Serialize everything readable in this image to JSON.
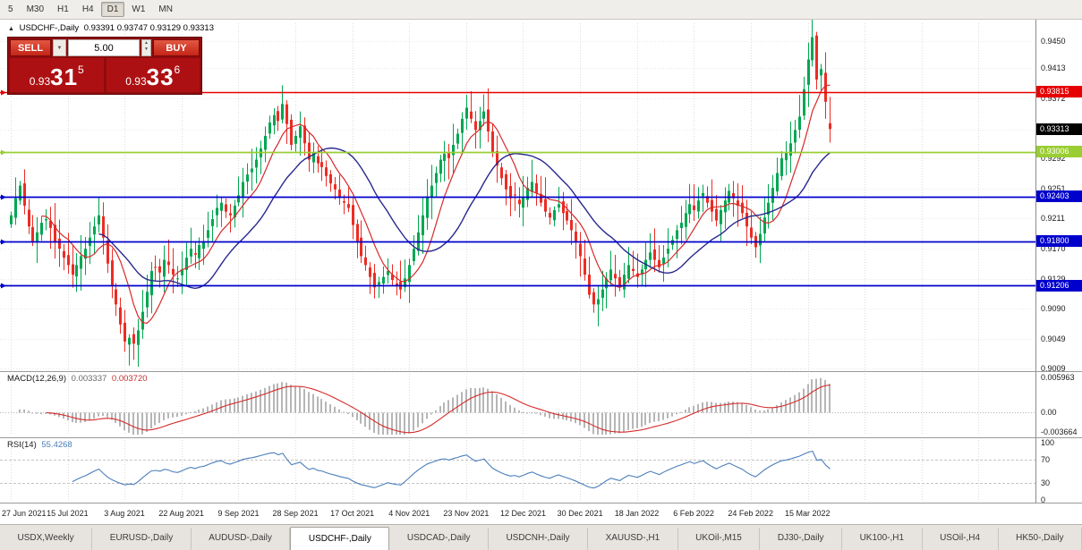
{
  "colors": {
    "background": "#ffffff",
    "up_candle": "#00a651",
    "down_candle": "#ec2c24",
    "ma_fast": "#d62a2a",
    "ma_slow": "#28288f",
    "grid": "#dcdcdc",
    "level_red": "#e60000",
    "level_green": "#9acd32",
    "level_blue": "#0000cc",
    "macd_histogram": "#b6b6b6",
    "macd_signal": "#d62a2a",
    "rsi_line": "#4a7ebb",
    "trade_panel_bg": "#8e0b0d",
    "trade_button": "#c42517",
    "trade_price_bg": "#ad1013",
    "current_price_box": "#000000"
  },
  "toolbar": {
    "timeframes": [
      "5",
      "M30",
      "H1",
      "H4",
      "D1",
      "W1",
      "MN"
    ],
    "active": "D1"
  },
  "chart": {
    "collapse_arrow": "▲",
    "title": "USDCHF-,Daily",
    "ohlc_text": "0.93391 0.93747 0.93129 0.93313"
  },
  "trade_panel": {
    "sell_label": "SELL",
    "buy_label": "BUY",
    "volume": "5.00",
    "sell_price": {
      "prefix": "0.93",
      "big": "31",
      "sup": "5"
    },
    "buy_price": {
      "prefix": "0.93",
      "big": "33",
      "sup": "6"
    }
  },
  "price_axis": {
    "range": {
      "max": 0.94738,
      "min": 0.90063
    },
    "ticks": [
      "0.9450",
      "0.9413",
      "0.9372",
      "0.9331",
      "0.9292",
      "0.9251",
      "0.9211",
      "0.9170",
      "0.9129",
      "0.9090",
      "0.9049",
      "0.9009"
    ],
    "levels": [
      {
        "value": 0.93815,
        "label": "0.93815",
        "color": "#e60000",
        "text_color": "#ffffff",
        "type": "resistance"
      },
      {
        "value": 0.93006,
        "label": "0.93006",
        "color": "#9acd32",
        "text_color": "#ffffff",
        "type": "support"
      },
      {
        "value": 0.92403,
        "label": "0.92403",
        "color": "#0000cc",
        "text_color": "#ffffff",
        "type": "support"
      },
      {
        "value": 0.918,
        "label": "0.91800",
        "color": "#0000cc",
        "text_color": "#ffffff",
        "type": "support"
      },
      {
        "value": 0.91206,
        "label": "0.91206",
        "color": "#0000cc",
        "text_color": "#ffffff",
        "type": "support"
      }
    ],
    "current_price": {
      "value": 0.93313,
      "label": "0.93313",
      "box_color": "#000000",
      "text_color": "#ffffff"
    }
  },
  "chart_data": {
    "type": "candlestick",
    "symbol": "USDCHF-",
    "timeframe": "Daily",
    "current_bar": {
      "open": 0.93391,
      "high": 0.93747,
      "low": 0.93129,
      "close": 0.93313
    },
    "ma_fast_period": 8,
    "ma_slow_period": 21,
    "label_every": 13,
    "x_labels": [
      "27 Jun 2021",
      "15 Jul 2021",
      "3 Aug 2021",
      "22 Aug 2021",
      "9 Sep 2021",
      "28 Sep 2021",
      "17 Oct 2021",
      "4 Nov 2021",
      "23 Nov 2021",
      "12 Dec 2021",
      "30 Dec 2021",
      "18 Jan 2022",
      "6 Feb 2022",
      "24 Feb 2022",
      "15 Mar 2022"
    ],
    "closes": [
      0.9215,
      0.9238,
      0.9255,
      0.9228,
      0.92,
      0.918,
      0.9192,
      0.9205,
      0.921,
      0.9198,
      0.918,
      0.917,
      0.9158,
      0.9148,
      0.9135,
      0.9148,
      0.916,
      0.917,
      0.9185,
      0.92,
      0.9215,
      0.9185,
      0.915,
      0.912,
      0.9095,
      0.9068,
      0.9045,
      0.905,
      0.9042,
      0.906,
      0.9085,
      0.9112,
      0.914,
      0.9145,
      0.9138,
      0.9155,
      0.9148,
      0.9135,
      0.913,
      0.9142,
      0.9158,
      0.917,
      0.9162,
      0.9175,
      0.918,
      0.9195,
      0.921,
      0.9225,
      0.9232,
      0.922,
      0.9215,
      0.9228,
      0.9242,
      0.926,
      0.927,
      0.9278,
      0.929,
      0.9305,
      0.9322,
      0.934,
      0.935,
      0.9342,
      0.9365,
      0.9338,
      0.931,
      0.9322,
      0.9335,
      0.9312,
      0.929,
      0.93,
      0.9285,
      0.928,
      0.9268,
      0.9258,
      0.925,
      0.924,
      0.9232,
      0.9225,
      0.9202,
      0.918,
      0.916,
      0.9148,
      0.9132,
      0.9118,
      0.9125,
      0.9132,
      0.914,
      0.9128,
      0.912,
      0.9115,
      0.913,
      0.9148,
      0.917,
      0.9192,
      0.9215,
      0.924,
      0.9255,
      0.9272,
      0.929,
      0.9298,
      0.9292,
      0.931,
      0.9325,
      0.9345,
      0.936,
      0.9345,
      0.933,
      0.9342,
      0.9355,
      0.9328,
      0.93,
      0.9282,
      0.9265,
      0.925,
      0.9238,
      0.9242,
      0.923,
      0.924,
      0.9252,
      0.926,
      0.9245,
      0.9232,
      0.922,
      0.9212,
      0.9222,
      0.923,
      0.9218,
      0.9208,
      0.9195,
      0.918,
      0.916,
      0.9135,
      0.9108,
      0.9095,
      0.9102,
      0.9115,
      0.913,
      0.9142,
      0.913,
      0.912,
      0.9135,
      0.9148,
      0.914,
      0.9132,
      0.9142,
      0.9155,
      0.9165,
      0.9155,
      0.9145,
      0.9158,
      0.917,
      0.9182,
      0.9195,
      0.9205,
      0.9218,
      0.923,
      0.9222,
      0.9235,
      0.9245,
      0.9232,
      0.922,
      0.9208,
      0.9222,
      0.9235,
      0.9248,
      0.9238,
      0.9228,
      0.9218,
      0.92,
      0.9185,
      0.9172,
      0.919,
      0.9212,
      0.9232,
      0.9252,
      0.9272,
      0.9292,
      0.93,
      0.9312,
      0.933,
      0.9348,
      0.9385,
      0.9425,
      0.9455,
      0.9398,
      0.9412,
      0.9368,
      0.93313
    ]
  },
  "macd": {
    "label": "MACD(12,26,9)",
    "fast": 12,
    "slow": 26,
    "signal": 9,
    "value_main": "0.003337",
    "value_signal": "0.003720",
    "axis_labels": [
      "0.005963",
      "0.00",
      "-0.003664"
    ],
    "range": {
      "max": 0.005963,
      "min": -0.003664
    }
  },
  "rsi": {
    "label": "RSI(14)",
    "period": 14,
    "value": "55.4268",
    "axis_labels": [
      "100",
      "70",
      "30",
      "0"
    ],
    "levels": [
      70,
      30
    ],
    "range": {
      "max": 100,
      "min": 0
    }
  },
  "tabs": [
    "USDX,Weekly",
    "EURUSD-,Daily",
    "AUDUSD-,Daily",
    "USDCHF-,Daily",
    "USDCAD-,Daily",
    "USDCNH-,Daily",
    "XAUUSD-,H1",
    "UKOil-,M15",
    "DJ30-,Daily",
    "UK100-,H1",
    "USOil-,H4",
    "HK50-,Daily"
  ],
  "active_tab": "USDCHF-,Daily"
}
